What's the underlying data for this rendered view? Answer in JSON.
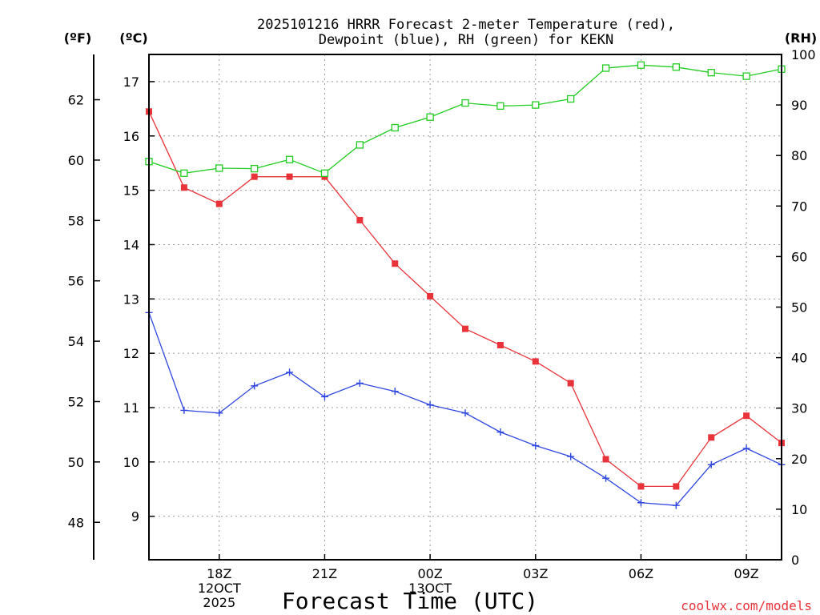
{
  "chart_data": {
    "type": "line",
    "title_line1": "2025101216 HRRR Forecast 2-meter Temperature (red),",
    "title_line2": "Dewpoint (blue), RH (green) for KEKN",
    "xlabel": "Forecast Time (UTC)",
    "unit_f": "(ºF)",
    "unit_c": "(ºC)",
    "unit_rh": "(RH)",
    "credit": "coolwx.com/models",
    "x": [
      16,
      17,
      18,
      19,
      20,
      21,
      22,
      23,
      24,
      25,
      26,
      27,
      28,
      29,
      30,
      31,
      32,
      33,
      34
    ],
    "xlim": [
      16,
      34
    ],
    "ylim_c": [
      8.2,
      17.5
    ],
    "ylim_f": [
      46.76,
      63.5
    ],
    "ylim_rh": [
      0,
      100
    ],
    "left_c_ticks": [
      "9",
      "10",
      "11",
      "12",
      "13",
      "14",
      "15",
      "16",
      "17"
    ],
    "left_f_ticks": [
      "48",
      "50",
      "52",
      "54",
      "56",
      "58",
      "60",
      "62"
    ],
    "right_rh_ticks": [
      "0",
      "10",
      "20",
      "30",
      "40",
      "50",
      "60",
      "70",
      "80",
      "90",
      "100"
    ],
    "x_ticks": [
      {
        "x": 18,
        "lines": [
          "18Z",
          "12OCT",
          "2025"
        ]
      },
      {
        "x": 21,
        "lines": [
          "21Z"
        ]
      },
      {
        "x": 24,
        "lines": [
          "00Z",
          "13OCT"
        ]
      },
      {
        "x": 27,
        "lines": [
          "03Z"
        ]
      },
      {
        "x": 30,
        "lines": [
          "06Z"
        ]
      },
      {
        "x": 33,
        "lines": [
          "09Z"
        ]
      }
    ],
    "series": [
      {
        "name": "Temperature",
        "axis": "c",
        "color": "#e8333a",
        "marker": "filled-square",
        "values": [
          16.45,
          15.05,
          14.75,
          15.25,
          15.25,
          15.25,
          14.45,
          13.65,
          13.05,
          12.45,
          12.15,
          11.85,
          11.45,
          10.05,
          9.55,
          9.55,
          10.45,
          10.85,
          10.35
        ]
      },
      {
        "name": "Dewpoint",
        "axis": "c",
        "color": "#2f47e0",
        "marker": "plus",
        "values": [
          12.75,
          10.95,
          10.9,
          11.4,
          11.65,
          11.2,
          11.45,
          11.3,
          11.05,
          10.9,
          10.55,
          10.3,
          10.1,
          9.7,
          9.25,
          9.2,
          9.95,
          10.25,
          9.95
        ]
      },
      {
        "name": "RH",
        "axis": "rh",
        "color": "#22cc22",
        "marker": "open-square",
        "values": [
          78.8,
          76.5,
          77.5,
          77.4,
          79.2,
          76.5,
          82.1,
          85.5,
          87.6,
          90.4,
          89.8,
          90.0,
          91.2,
          97.3,
          97.9,
          97.5,
          96.4,
          95.7,
          97.1
        ]
      }
    ]
  }
}
